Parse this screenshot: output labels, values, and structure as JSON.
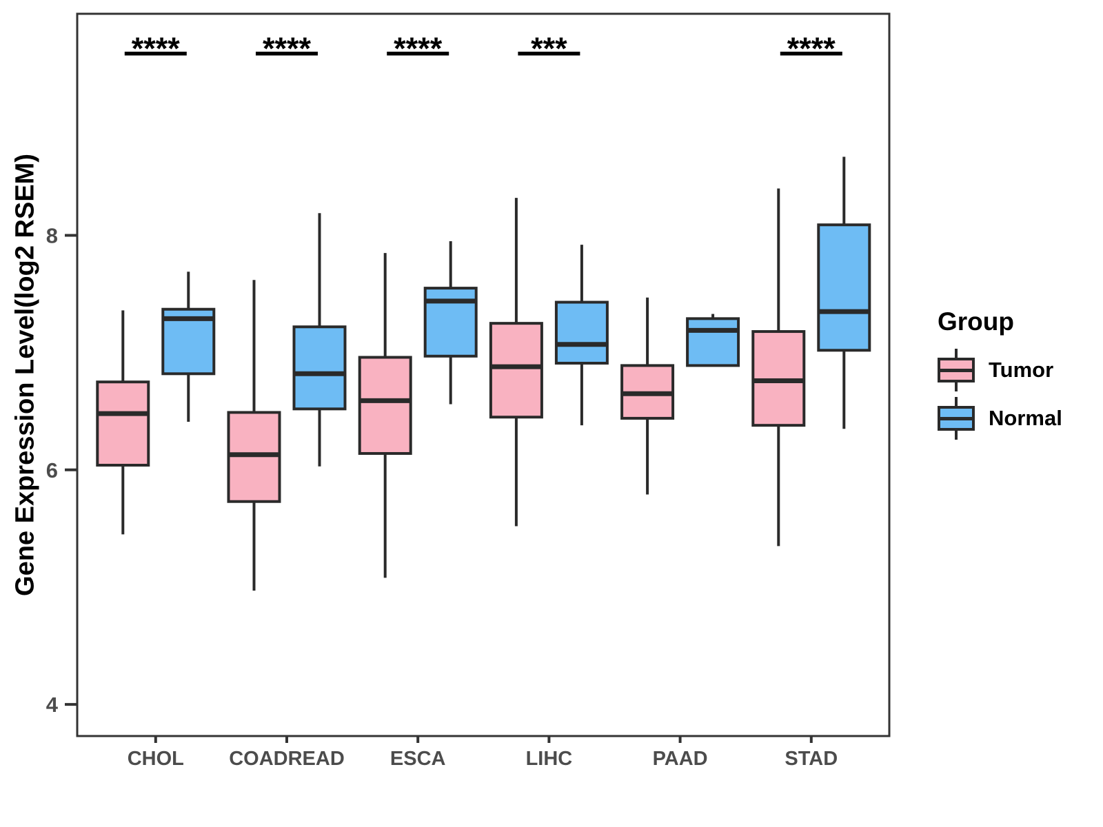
{
  "chart_data": {
    "type": "grouped_boxplot",
    "title": "",
    "xlabel": "",
    "ylabel": "Gene Expression Level(log2 RSEM)",
    "categories": [
      "CHOL",
      "COADREAD",
      "ESCA",
      "LIHC",
      "PAAD",
      "STAD"
    ],
    "yticks": [
      4,
      6,
      8
    ],
    "ylim": [
      3.73,
      9.89
    ],
    "grid": false,
    "legend_position": "right",
    "significance_by_category": [
      "****",
      "****",
      "****",
      "***",
      null,
      "****"
    ],
    "series": [
      {
        "name": "Tumor",
        "color": "#F9B2C1",
        "boxes": [
          {
            "category": "CHOL",
            "whisker_low": 5.45,
            "q1": 6.04,
            "median": 6.48,
            "q3": 6.75,
            "whisker_high": 7.36
          },
          {
            "category": "COADREAD",
            "whisker_low": 4.97,
            "q1": 5.73,
            "median": 6.13,
            "q3": 6.49,
            "whisker_high": 7.62
          },
          {
            "category": "ESCA",
            "whisker_low": 5.08,
            "q1": 6.14,
            "median": 6.59,
            "q3": 6.96,
            "whisker_high": 7.85
          },
          {
            "category": "LIHC",
            "whisker_low": 5.52,
            "q1": 6.45,
            "median": 6.88,
            "q3": 7.25,
            "whisker_high": 8.32
          },
          {
            "category": "PAAD",
            "whisker_low": 5.79,
            "q1": 6.44,
            "median": 6.65,
            "q3": 6.89,
            "whisker_high": 7.47
          },
          {
            "category": "STAD",
            "whisker_low": 5.35,
            "q1": 6.38,
            "median": 6.76,
            "q3": 7.18,
            "whisker_high": 8.4
          }
        ]
      },
      {
        "name": "Normal",
        "color": "#6EBCF4",
        "boxes": [
          {
            "category": "CHOL",
            "whisker_low": 6.41,
            "q1": 6.82,
            "median": 7.29,
            "q3": 7.37,
            "whisker_high": 7.69
          },
          {
            "category": "COADREAD",
            "whisker_low": 6.03,
            "q1": 6.52,
            "median": 6.82,
            "q3": 7.22,
            "whisker_high": 8.19
          },
          {
            "category": "ESCA",
            "whisker_low": 6.56,
            "q1": 6.97,
            "median": 7.44,
            "q3": 7.55,
            "whisker_high": 7.95
          },
          {
            "category": "LIHC",
            "whisker_low": 6.38,
            "q1": 6.91,
            "median": 7.07,
            "q3": 7.43,
            "whisker_high": 7.92
          },
          {
            "category": "PAAD",
            "whisker_low": 6.89,
            "q1": 6.89,
            "median": 7.19,
            "q3": 7.29,
            "whisker_high": 7.33
          },
          {
            "category": "STAD",
            "whisker_low": 6.35,
            "q1": 7.02,
            "median": 7.35,
            "q3": 8.09,
            "whisker_high": 8.67
          }
        ]
      }
    ]
  },
  "legend": {
    "title": "Group",
    "items": [
      {
        "label": "Tumor",
        "color": "#F9B2C1"
      },
      {
        "label": "Normal",
        "color": "#6EBCF4"
      }
    ]
  },
  "colors": {
    "background": "#FFFFFF",
    "panel_border": "#333333",
    "box_border": "#2A2A2A",
    "axis_text": "#4C4C4C",
    "significance": "#000000"
  }
}
